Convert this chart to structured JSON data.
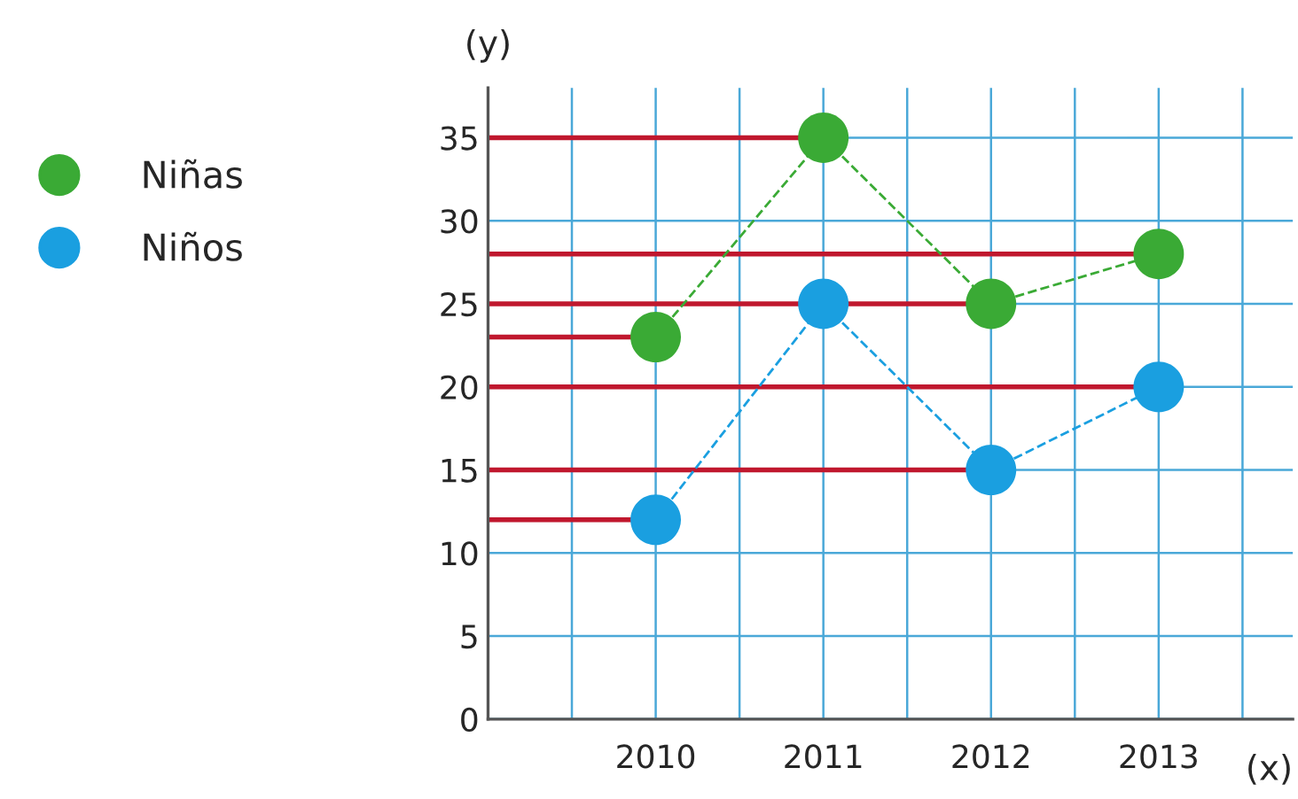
{
  "chart_data": {
    "type": "line",
    "xlabel": "(x)",
    "ylabel": "(y)",
    "x": [
      2010,
      2011,
      2012,
      2013
    ],
    "series": [
      {
        "name": "Niñas",
        "color": "#3aaa35",
        "values": [
          23,
          35,
          25,
          28
        ]
      },
      {
        "name": "Niños",
        "color": "#1a9fe0",
        "values": [
          12,
          25,
          15,
          20
        ]
      }
    ],
    "xlim": [
      2009,
      2013.8
    ],
    "ylim": [
      0,
      38
    ],
    "xticks": [
      {
        "value": 2009.5,
        "label": null
      },
      2010,
      {
        "value": 2010.5,
        "label": null
      },
      2011,
      {
        "value": 2011.5,
        "label": null
      },
      2012,
      {
        "value": 2012.5,
        "label": null
      },
      2013,
      {
        "value": 2013.5,
        "label": null
      }
    ],
    "yticks": [
      0,
      5,
      10,
      15,
      20,
      25,
      30,
      35
    ],
    "ref_lines": [
      {
        "axis": "y",
        "value": 35,
        "color": "#c0182e"
      },
      {
        "axis": "y",
        "value": 28,
        "color": "#c0182e"
      },
      {
        "axis": "y",
        "value": 25,
        "color": "#c0182e"
      },
      {
        "axis": "y",
        "value": 23,
        "color": "#c0182e"
      },
      {
        "axis": "y",
        "value": 20,
        "color": "#c0182e"
      },
      {
        "axis": "y",
        "value": 15,
        "color": "#c0182e"
      },
      {
        "axis": "y",
        "value": 12,
        "color": "#c0182e"
      }
    ],
    "grid": true,
    "legend": "left",
    "marker": "circle",
    "line_style": "dashed"
  }
}
